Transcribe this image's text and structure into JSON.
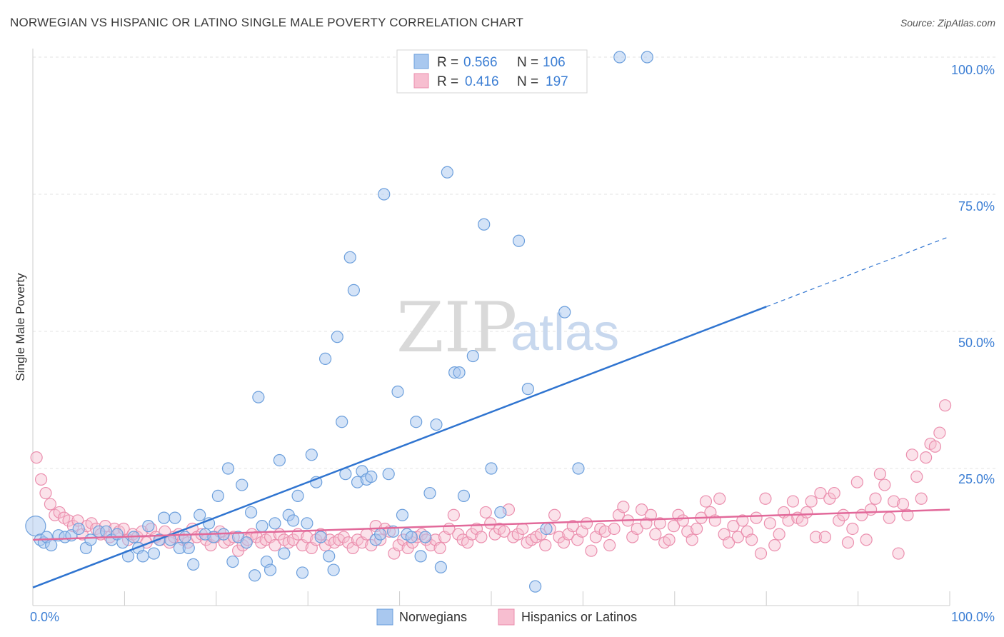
{
  "header": {
    "title": "NORWEGIAN VS HISPANIC OR LATINO SINGLE MALE POVERTY CORRELATION CHART",
    "source": "Source: ZipAtlas.com"
  },
  "watermark": {
    "zip": "ZIP",
    "atlas": "atlas"
  },
  "colors": {
    "blue_fill": "#a9c8ef",
    "blue_stroke": "#6c9fdc",
    "blue_line": "#2f74d0",
    "pink_fill": "#f7bed0",
    "pink_stroke": "#eb8fae",
    "pink_line": "#e2699a",
    "accent_text": "#3d7fd4"
  },
  "legend_box": {
    "rows": [
      {
        "r_label": "R = ",
        "r_value": "0.566",
        "n_label": "N = ",
        "n_value": "106"
      },
      {
        "r_label": "R = ",
        "r_value": "0.416",
        "n_label": "N = ",
        "n_value": "197"
      }
    ]
  },
  "chart_data": {
    "type": "scatter",
    "title": "NORWEGIAN VS HISPANIC OR LATINO SINGLE MALE POVERTY CORRELATION CHART",
    "xlabel": "",
    "ylabel": "Single Male Poverty",
    "xlim": [
      0,
      100
    ],
    "ylim": [
      0,
      100
    ],
    "x_tick_labels": [
      "0.0%",
      "100.0%"
    ],
    "y_tick_labels": [
      "100.0%",
      "75.0%",
      "50.0%",
      "25.0%"
    ],
    "y_ticks": [
      100,
      75,
      50,
      25
    ],
    "grid": true,
    "legend_placement": "bottom-center",
    "series": [
      {
        "name": "Norwegians",
        "trend": {
          "x0": 0,
          "y0": 3.3,
          "x1": 80,
          "y1": 54.5,
          "dashed_to": 100
        },
        "points": [
          [
            0.3,
            14.5
          ],
          [
            0.8,
            12.0
          ],
          [
            1.2,
            11.5
          ],
          [
            1.5,
            12.5
          ],
          [
            2.0,
            11.0
          ],
          [
            2.8,
            12.8
          ],
          [
            3.5,
            12.5
          ],
          [
            4.2,
            12.8
          ],
          [
            5.0,
            14.0
          ],
          [
            5.8,
            10.5
          ],
          [
            6.3,
            12.0
          ],
          [
            7.2,
            13.5
          ],
          [
            8.0,
            13.5
          ],
          [
            8.6,
            12.0
          ],
          [
            9.2,
            13.0
          ],
          [
            9.8,
            11.5
          ],
          [
            10.4,
            9.0
          ],
          [
            11.0,
            12.5
          ],
          [
            11.5,
            10.5
          ],
          [
            12.0,
            9.0
          ],
          [
            12.6,
            14.5
          ],
          [
            13.2,
            9.5
          ],
          [
            13.8,
            12.0
          ],
          [
            14.3,
            16.0
          ],
          [
            15.0,
            12.0
          ],
          [
            15.5,
            16.0
          ],
          [
            16.0,
            10.5
          ],
          [
            16.6,
            12.5
          ],
          [
            17.0,
            10.5
          ],
          [
            17.5,
            7.5
          ],
          [
            18.2,
            16.5
          ],
          [
            18.8,
            13.0
          ],
          [
            19.2,
            15.0
          ],
          [
            19.7,
            12.5
          ],
          [
            20.2,
            20.0
          ],
          [
            20.8,
            13.0
          ],
          [
            21.3,
            25.0
          ],
          [
            21.8,
            8.0
          ],
          [
            22.4,
            12.5
          ],
          [
            22.8,
            22.0
          ],
          [
            23.3,
            11.5
          ],
          [
            23.8,
            17.0
          ],
          [
            24.2,
            5.5
          ],
          [
            24.6,
            38.0
          ],
          [
            25.0,
            14.5
          ],
          [
            25.5,
            8.0
          ],
          [
            25.9,
            6.5
          ],
          [
            26.4,
            15.0
          ],
          [
            26.9,
            26.5
          ],
          [
            27.4,
            9.5
          ],
          [
            27.9,
            16.5
          ],
          [
            28.4,
            15.5
          ],
          [
            28.9,
            20.0
          ],
          [
            29.4,
            6.0
          ],
          [
            29.9,
            15.0
          ],
          [
            30.4,
            27.5
          ],
          [
            30.9,
            22.5
          ],
          [
            31.4,
            12.5
          ],
          [
            31.9,
            45.0
          ],
          [
            32.3,
            9.0
          ],
          [
            32.8,
            6.5
          ],
          [
            33.2,
            49.0
          ],
          [
            33.7,
            33.5
          ],
          [
            34.1,
            24.0
          ],
          [
            34.6,
            63.5
          ],
          [
            35.0,
            57.5
          ],
          [
            35.4,
            22.5
          ],
          [
            35.9,
            24.5
          ],
          [
            36.4,
            23.0
          ],
          [
            36.9,
            23.5
          ],
          [
            37.4,
            12.0
          ],
          [
            37.9,
            13.0
          ],
          [
            38.3,
            75.0
          ],
          [
            38.8,
            24.0
          ],
          [
            39.3,
            13.5
          ],
          [
            39.8,
            39.0
          ],
          [
            40.3,
            16.5
          ],
          [
            40.8,
            13.0
          ],
          [
            41.3,
            12.5
          ],
          [
            41.8,
            33.5
          ],
          [
            42.3,
            9.0
          ],
          [
            42.8,
            12.5
          ],
          [
            43.3,
            20.5
          ],
          [
            44.0,
            33.0
          ],
          [
            44.5,
            7.0
          ],
          [
            45.2,
            79.0
          ],
          [
            46.0,
            42.5
          ],
          [
            46.5,
            42.5
          ],
          [
            47.0,
            20.0
          ],
          [
            48.0,
            45.5
          ],
          [
            49.2,
            69.5
          ],
          [
            50.0,
            25.0
          ],
          [
            51.0,
            17.0
          ],
          [
            53.0,
            66.5
          ],
          [
            54.0,
            39.5
          ],
          [
            54.8,
            3.5
          ],
          [
            56.0,
            14.0
          ],
          [
            58.0,
            53.5
          ],
          [
            59.5,
            25.0
          ],
          [
            64.0,
            100.0
          ],
          [
            67.0,
            100.0
          ]
        ]
      },
      {
        "name": "Hispanics or Latinos",
        "trend": {
          "x0": 0,
          "y0": 12.0,
          "x1": 100,
          "y1": 17.5
        },
        "points": [
          [
            0.4,
            27.0
          ],
          [
            0.9,
            23.0
          ],
          [
            1.4,
            20.5
          ],
          [
            1.9,
            18.5
          ],
          [
            2.4,
            16.5
          ],
          [
            2.9,
            17.0
          ],
          [
            3.4,
            16.0
          ],
          [
            3.9,
            15.5
          ],
          [
            4.4,
            14.5
          ],
          [
            4.9,
            15.5
          ],
          [
            5.4,
            13.0
          ],
          [
            5.9,
            14.5
          ],
          [
            6.4,
            15.0
          ],
          [
            6.9,
            14.0
          ],
          [
            7.4,
            13.0
          ],
          [
            7.9,
            14.5
          ],
          [
            8.4,
            12.5
          ],
          [
            8.9,
            14.0
          ],
          [
            9.4,
            13.5
          ],
          [
            9.9,
            14.0
          ],
          [
            10.4,
            12.0
          ],
          [
            10.9,
            13.0
          ],
          [
            11.4,
            12.5
          ],
          [
            11.9,
            13.5
          ],
          [
            12.4,
            11.5
          ],
          [
            12.9,
            14.0
          ],
          [
            13.4,
            12.5
          ],
          [
            13.9,
            12.0
          ],
          [
            14.4,
            13.5
          ],
          [
            14.9,
            11.5
          ],
          [
            15.4,
            12.5
          ],
          [
            15.9,
            13.0
          ],
          [
            16.4,
            12.0
          ],
          [
            16.9,
            11.5
          ],
          [
            17.4,
            14.0
          ],
          [
            17.9,
            12.5
          ],
          [
            18.4,
            13.0
          ],
          [
            18.9,
            12.0
          ],
          [
            19.4,
            11.0
          ],
          [
            19.9,
            12.5
          ],
          [
            20.4,
            13.5
          ],
          [
            20.9,
            11.5
          ],
          [
            21.4,
            12.0
          ],
          [
            21.9,
            12.5
          ],
          [
            22.4,
            10.0
          ],
          [
            22.9,
            11.0
          ],
          [
            23.4,
            12.0
          ],
          [
            23.9,
            13.0
          ],
          [
            24.4,
            12.5
          ],
          [
            24.9,
            11.5
          ],
          [
            25.4,
            12.0
          ],
          [
            25.9,
            12.5
          ],
          [
            26.4,
            11.0
          ],
          [
            26.9,
            13.0
          ],
          [
            27.4,
            12.0
          ],
          [
            27.9,
            11.5
          ],
          [
            28.4,
            12.0
          ],
          [
            28.9,
            13.0
          ],
          [
            29.4,
            11.0
          ],
          [
            29.9,
            12.5
          ],
          [
            30.4,
            10.5
          ],
          [
            30.9,
            12.0
          ],
          [
            31.4,
            13.0
          ],
          [
            31.9,
            11.0
          ],
          [
            32.4,
            12.0
          ],
          [
            32.9,
            11.5
          ],
          [
            33.4,
            12.0
          ],
          [
            33.9,
            12.5
          ],
          [
            34.4,
            11.5
          ],
          [
            34.9,
            10.5
          ],
          [
            35.4,
            12.0
          ],
          [
            35.9,
            11.5
          ],
          [
            36.4,
            13.0
          ],
          [
            36.9,
            11.0
          ],
          [
            37.4,
            14.5
          ],
          [
            37.9,
            12.0
          ],
          [
            38.4,
            14.0
          ],
          [
            38.9,
            13.5
          ],
          [
            39.4,
            9.5
          ],
          [
            39.9,
            11.0
          ],
          [
            40.4,
            12.0
          ],
          [
            40.9,
            10.5
          ],
          [
            41.4,
            11.5
          ],
          [
            41.9,
            12.5
          ],
          [
            42.4,
            13.0
          ],
          [
            42.9,
            12.0
          ],
          [
            43.4,
            11.0
          ],
          [
            43.9,
            12.0
          ],
          [
            44.4,
            10.5
          ],
          [
            44.9,
            12.5
          ],
          [
            45.4,
            14.0
          ],
          [
            45.9,
            16.5
          ],
          [
            46.4,
            13.0
          ],
          [
            46.9,
            12.0
          ],
          [
            47.4,
            11.5
          ],
          [
            47.9,
            13.0
          ],
          [
            48.4,
            14.0
          ],
          [
            48.9,
            12.5
          ],
          [
            49.4,
            17.0
          ],
          [
            49.9,
            15.0
          ],
          [
            50.4,
            13.0
          ],
          [
            50.9,
            14.0
          ],
          [
            51.4,
            13.5
          ],
          [
            51.9,
            17.5
          ],
          [
            52.4,
            12.5
          ],
          [
            52.9,
            13.0
          ],
          [
            53.4,
            14.0
          ],
          [
            53.9,
            11.5
          ],
          [
            54.4,
            12.0
          ],
          [
            54.9,
            12.5
          ],
          [
            55.4,
            13.0
          ],
          [
            55.9,
            11.0
          ],
          [
            56.4,
            14.0
          ],
          [
            56.9,
            16.5
          ],
          [
            57.4,
            12.5
          ],
          [
            57.9,
            11.5
          ],
          [
            58.4,
            13.0
          ],
          [
            58.9,
            14.5
          ],
          [
            59.4,
            12.0
          ],
          [
            59.9,
            13.5
          ],
          [
            60.4,
            15.0
          ],
          [
            60.9,
            10.0
          ],
          [
            61.4,
            12.5
          ],
          [
            61.9,
            14.0
          ],
          [
            62.4,
            13.5
          ],
          [
            62.9,
            11.0
          ],
          [
            63.4,
            14.0
          ],
          [
            63.9,
            16.5
          ],
          [
            64.4,
            18.0
          ],
          [
            64.9,
            15.5
          ],
          [
            65.4,
            12.5
          ],
          [
            65.9,
            14.0
          ],
          [
            66.4,
            17.5
          ],
          [
            66.9,
            15.0
          ],
          [
            67.4,
            16.5
          ],
          [
            67.9,
            13.0
          ],
          [
            68.4,
            15.0
          ],
          [
            68.9,
            11.5
          ],
          [
            69.4,
            12.0
          ],
          [
            69.9,
            14.5
          ],
          [
            70.4,
            16.5
          ],
          [
            70.9,
            15.5
          ],
          [
            71.4,
            13.5
          ],
          [
            71.9,
            12.0
          ],
          [
            72.4,
            14.0
          ],
          [
            72.9,
            16.0
          ],
          [
            73.4,
            19.0
          ],
          [
            73.9,
            17.0
          ],
          [
            74.4,
            15.5
          ],
          [
            74.9,
            19.5
          ],
          [
            75.4,
            13.0
          ],
          [
            75.9,
            11.5
          ],
          [
            76.4,
            14.5
          ],
          [
            76.9,
            12.5
          ],
          [
            77.4,
            15.5
          ],
          [
            77.9,
            13.5
          ],
          [
            78.4,
            12.0
          ],
          [
            78.9,
            16.0
          ],
          [
            79.4,
            9.5
          ],
          [
            79.9,
            19.5
          ],
          [
            80.4,
            15.0
          ],
          [
            80.9,
            11.0
          ],
          [
            81.4,
            13.0
          ],
          [
            81.9,
            17.0
          ],
          [
            82.4,
            15.5
          ],
          [
            82.9,
            19.0
          ],
          [
            83.4,
            16.0
          ],
          [
            83.9,
            15.5
          ],
          [
            84.4,
            17.0
          ],
          [
            84.9,
            19.0
          ],
          [
            85.4,
            12.5
          ],
          [
            85.9,
            20.5
          ],
          [
            86.4,
            12.5
          ],
          [
            86.9,
            19.5
          ],
          [
            87.4,
            20.5
          ],
          [
            87.9,
            15.5
          ],
          [
            88.4,
            16.5
          ],
          [
            88.9,
            11.5
          ],
          [
            89.4,
            14.0
          ],
          [
            89.9,
            22.5
          ],
          [
            90.4,
            16.5
          ],
          [
            90.9,
            12.0
          ],
          [
            91.4,
            17.5
          ],
          [
            91.9,
            19.5
          ],
          [
            92.4,
            24.0
          ],
          [
            92.9,
            22.0
          ],
          [
            93.4,
            16.0
          ],
          [
            93.9,
            19.0
          ],
          [
            94.4,
            9.5
          ],
          [
            94.9,
            18.5
          ],
          [
            95.4,
            16.5
          ],
          [
            95.9,
            27.5
          ],
          [
            96.4,
            23.5
          ],
          [
            96.9,
            19.5
          ],
          [
            97.4,
            27.0
          ],
          [
            97.9,
            29.5
          ],
          [
            98.4,
            29.0
          ],
          [
            98.9,
            31.5
          ],
          [
            99.5,
            36.5
          ]
        ]
      }
    ]
  }
}
